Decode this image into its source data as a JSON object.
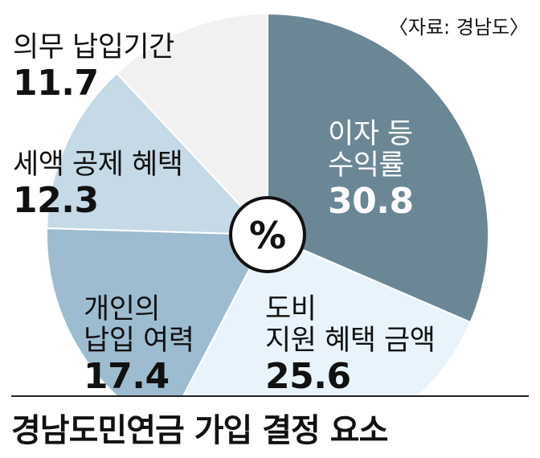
{
  "source": "〈자료: 경남도〉",
  "footer_title": "경남도민연금 가입 결정 요소",
  "chart_data": {
    "type": "pie",
    "unit": "%",
    "slices": [
      {
        "line1": "이자 등",
        "line2": "수익률",
        "value": 30.8,
        "value_label": "30.8",
        "color": "#6b8796"
      },
      {
        "line1": "도비",
        "line2": "지원 혜택 금액",
        "value": 25.6,
        "value_label": "25.6",
        "color": "#e8f3fb"
      },
      {
        "line1": "개인의",
        "line2": "납입 여력",
        "value": 17.4,
        "value_label": "17.4",
        "color": "#9dbcd0"
      },
      {
        "line1": "세액 공제 혜택",
        "line2": "",
        "value": 12.3,
        "value_label": "12.3",
        "color": "#c5d9e7"
      },
      {
        "line1": "의무 납입기간",
        "line2": "",
        "value": 11.7,
        "value_label": "11.7",
        "color": "#f1f1f1"
      }
    ]
  }
}
